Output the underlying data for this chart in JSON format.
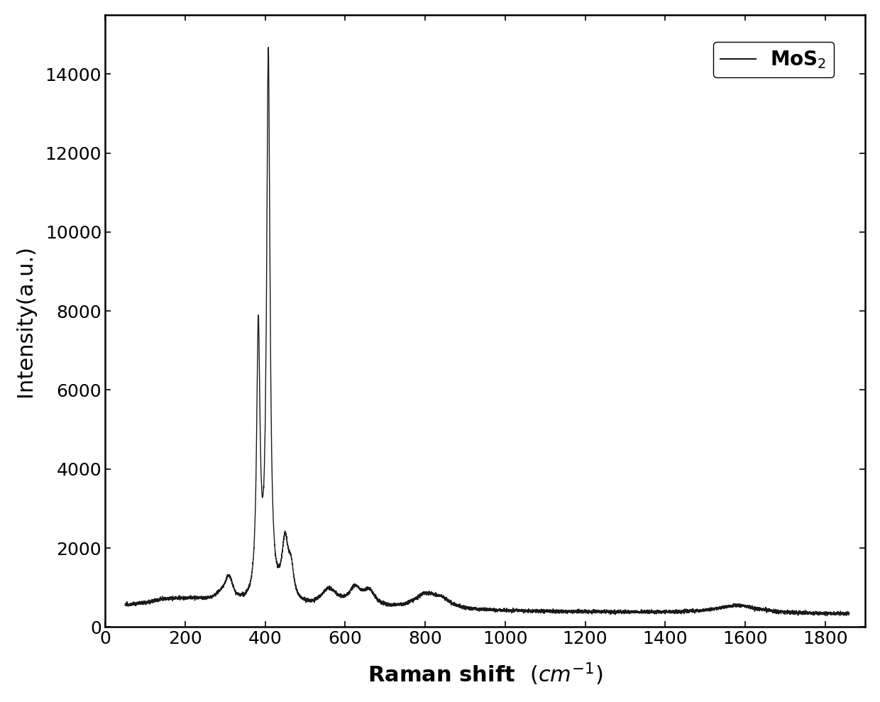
{
  "title": "",
  "xlabel": "Raman shift （cm⁻¹）",
  "ylabel": "Intensity(a.u.)",
  "xlim": [
    0,
    1900
  ],
  "ylim": [
    0,
    15500
  ],
  "xticks": [
    0,
    200,
    400,
    600,
    800,
    1000,
    1200,
    1400,
    1600,
    1800
  ],
  "yticks": [
    0,
    2000,
    4000,
    6000,
    8000,
    10000,
    12000,
    14000
  ],
  "line_color": "#1a1a1a",
  "line_width": 1.0,
  "background_color": "#ffffff",
  "legend_label": "MoS$_2$",
  "legend_fontsize": 18,
  "axis_label_fontsize": 22,
  "tick_fontsize": 18,
  "xlabel_fontweight": "bold",
  "ylabel_fontweight": "normal"
}
